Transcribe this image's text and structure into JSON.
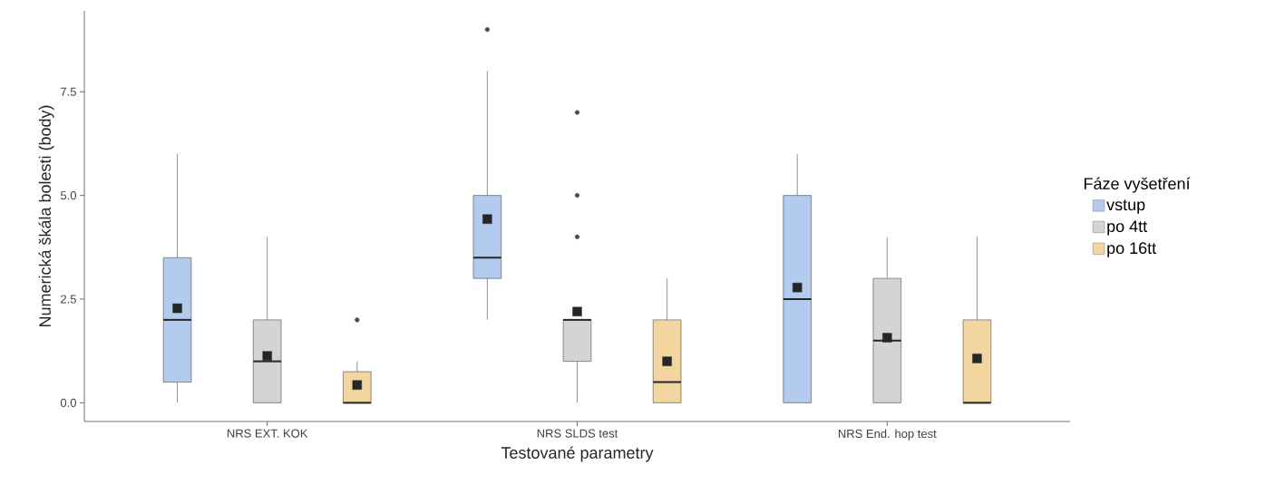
{
  "chart_data": {
    "type": "box",
    "xlabel": "Testované parametry",
    "ylabel": "Numerická škála bolesti (body)",
    "legend_title": "Fáze vyšetření",
    "legend": "right",
    "categories": [
      "NRS EXT. KOK",
      "NRS SLDS test",
      "NRS End. hop test"
    ],
    "ylim": [
      -0.45,
      9.45
    ],
    "yticks": [
      {
        "value": 0,
        "label": "0.0"
      },
      {
        "value": 2.5,
        "label": "2.5"
      },
      {
        "value": 5,
        "label": "5.0"
      },
      {
        "value": 7.5,
        "label": "7.5"
      }
    ],
    "series": [
      {
        "name": "vstup",
        "color": "#b3cbee",
        "boxes": [
          {
            "low": 0,
            "q1": 0.5,
            "median": 2,
            "q3": 3.5,
            "high": 6,
            "mean": 2.28
          },
          {
            "low": 2,
            "q1": 3,
            "median": 3.5,
            "q3": 5,
            "high": 8,
            "mean": 4.43,
            "outliers": [
              9
            ]
          },
          {
            "low": 0,
            "q1": 0,
            "median": 2.5,
            "q3": 5,
            "high": 6,
            "mean": 2.78
          }
        ]
      },
      {
        "name": "po 4tt",
        "color": "#d4d4d4",
        "boxes": [
          {
            "low": 0,
            "q1": 0,
            "median": 1,
            "q3": 2,
            "high": 4,
            "mean": 1.13
          },
          {
            "low": 0,
            "q1": 1,
            "median": 2,
            "q3": 2,
            "high": 2,
            "mean": 2.2,
            "outliers": [
              4,
              5,
              7
            ]
          },
          {
            "low": 0,
            "q1": 0,
            "median": 1.5,
            "q3": 3,
            "high": 4,
            "mean": 1.57
          }
        ]
      },
      {
        "name": "po 16tt",
        "color": "#f3d59f",
        "boxes": [
          {
            "low": 0,
            "q1": 0,
            "median": 0,
            "q3": 0.75,
            "high": 1,
            "mean": 0.43,
            "outliers": [
              2
            ]
          },
          {
            "low": 0,
            "q1": 0,
            "median": 0.5,
            "q3": 2,
            "high": 3,
            "mean": 1.0
          },
          {
            "low": 0,
            "q1": 0,
            "median": 0,
            "q3": 2,
            "high": 4,
            "mean": 1.07
          }
        ]
      }
    ]
  }
}
